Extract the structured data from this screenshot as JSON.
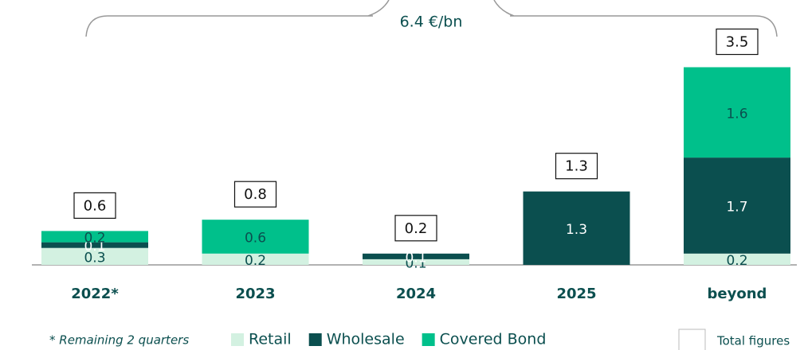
{
  "chart_data": {
    "type": "bar",
    "stacked": true,
    "annotation": "6.4 €/bn",
    "footnote": "* Remaining 2 quarters",
    "totals_legend": "Total figures",
    "categories": [
      "2022*",
      "2023",
      "2024",
      "2025",
      "beyond"
    ],
    "series": [
      {
        "name": "Retail",
        "color": "#d3f1e1",
        "values": [
          0.3,
          0.2,
          0.1,
          null,
          0.2
        ]
      },
      {
        "name": "Wholesale",
        "color": "#0b4f4f",
        "values": [
          0.1,
          null,
          0.1,
          1.3,
          1.7
        ]
      },
      {
        "name": "Covered Bond",
        "color": "#00c08b",
        "values": [
          0.2,
          0.6,
          null,
          null,
          1.6
        ]
      }
    ],
    "totals": [
      0.6,
      0.8,
      0.2,
      1.3,
      3.5
    ]
  }
}
